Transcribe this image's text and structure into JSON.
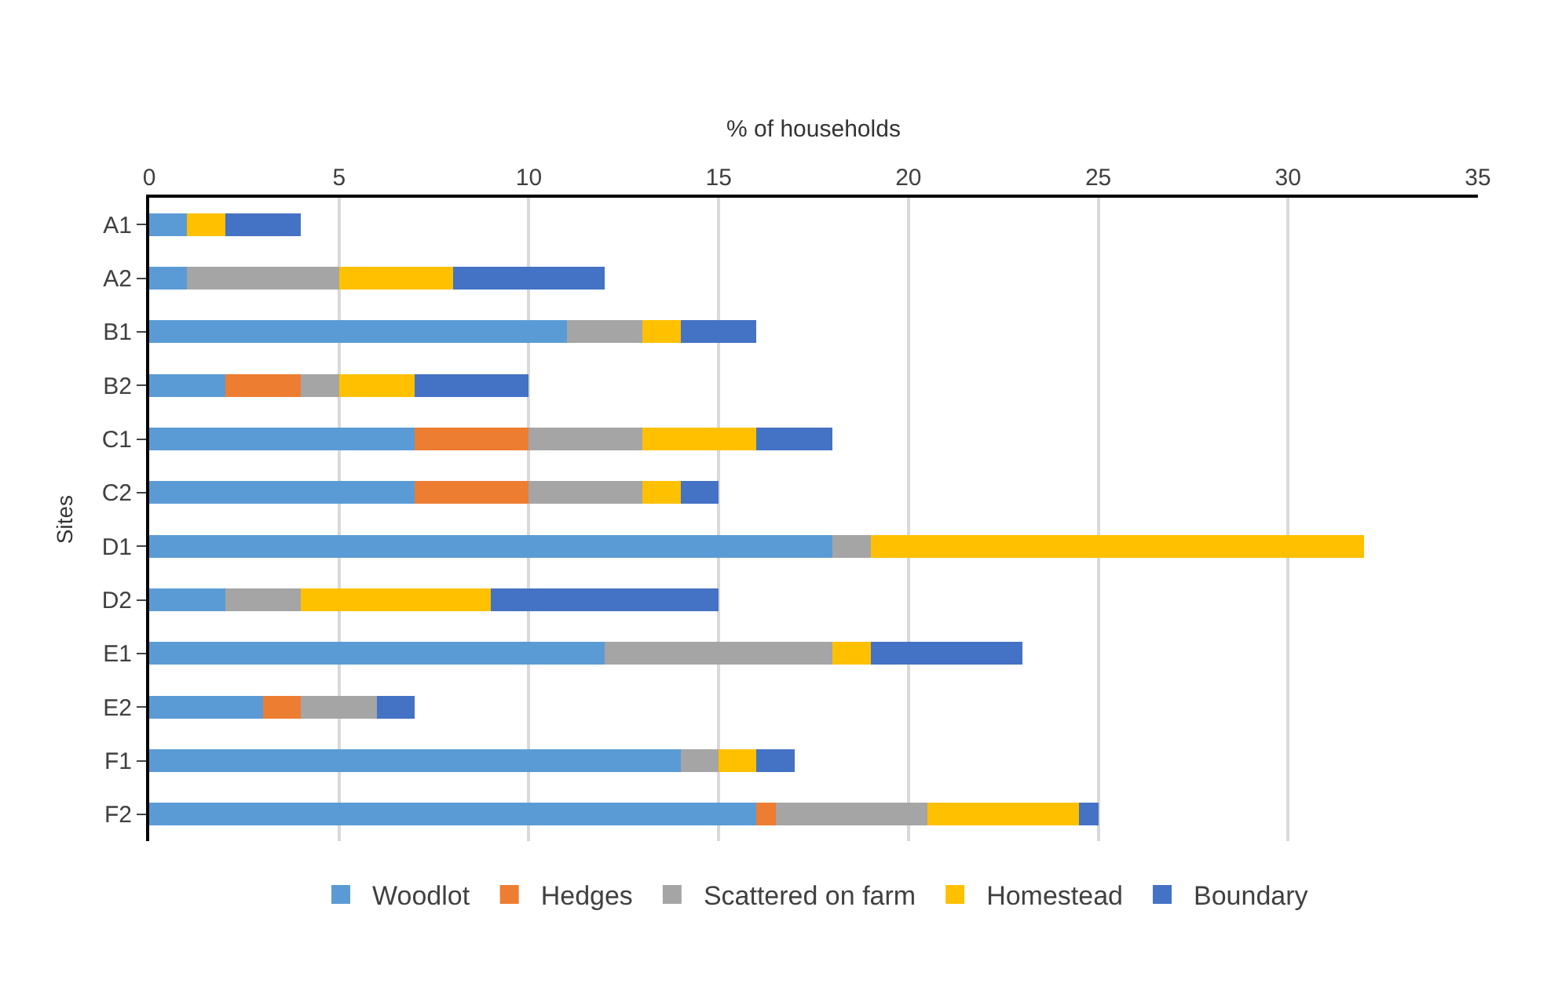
{
  "chart_data": {
    "type": "bar",
    "orientation": "horizontal",
    "stacked": true,
    "xlabel": "% of households",
    "ylabel": "Sites",
    "categories": [
      "A1",
      "A2",
      "B1",
      "B2",
      "C1",
      "C2",
      "D1",
      "D2",
      "E1",
      "E2",
      "F1",
      "F2"
    ],
    "series": [
      {
        "name": "Woodlot",
        "color": "#5b9bd5",
        "values": [
          1,
          1,
          11,
          2,
          7,
          7,
          18,
          2,
          12,
          3,
          14,
          16
        ]
      },
      {
        "name": "Hedges",
        "color": "#ed7d31",
        "values": [
          0,
          0,
          0,
          2,
          3,
          3,
          0,
          0,
          0,
          1,
          0,
          0.5
        ]
      },
      {
        "name": "Scattered on farm",
        "color": "#a5a5a5",
        "values": [
          0,
          4,
          2,
          1,
          3,
          3,
          1,
          2,
          6,
          2,
          1,
          4
        ]
      },
      {
        "name": "Homestead",
        "color": "#ffc000",
        "values": [
          1,
          3,
          1,
          2,
          3,
          1,
          13,
          5,
          1,
          0,
          1,
          4
        ]
      },
      {
        "name": "Boundary",
        "color": "#4472c4",
        "values": [
          2,
          4,
          2,
          3,
          2,
          1,
          0,
          6,
          4,
          1,
          1,
          0.5
        ]
      }
    ],
    "xlim": [
      0,
      35
    ],
    "xticks": [
      0,
      5,
      10,
      15,
      20,
      25,
      30,
      35
    ],
    "grid": "x",
    "legend": "bottom"
  }
}
